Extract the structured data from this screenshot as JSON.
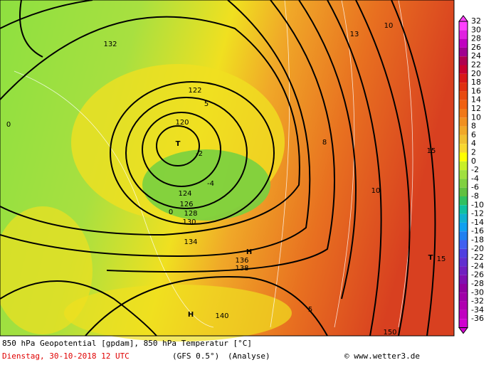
{
  "legend": {
    "levels": [
      {
        "value": 32,
        "color": "#ff40ff"
      },
      {
        "value": 30,
        "color": "#e020e0"
      },
      {
        "value": 28,
        "color": "#c000c0"
      },
      {
        "value": 26,
        "color": "#a00090"
      },
      {
        "value": 24,
        "color": "#b00050"
      },
      {
        "value": 22,
        "color": "#c80030"
      },
      {
        "value": 20,
        "color": "#d81818"
      },
      {
        "value": 18,
        "color": "#e03010"
      },
      {
        "value": 16,
        "color": "#e84a10"
      },
      {
        "value": 14,
        "color": "#f06010"
      },
      {
        "value": 12,
        "color": "#f07818"
      },
      {
        "value": 10,
        "color": "#f09020"
      },
      {
        "value": 8,
        "color": "#f0a828"
      },
      {
        "value": 6,
        "color": "#f0c030"
      },
      {
        "value": 4,
        "color": "#f8d830"
      },
      {
        "value": 2,
        "color": "#ffff00"
      },
      {
        "value": 0,
        "color": "#c8f028"
      },
      {
        "value": -2,
        "color": "#a0e040"
      },
      {
        "value": -4,
        "color": "#80d040"
      },
      {
        "value": -6,
        "color": "#60c040"
      },
      {
        "value": -8,
        "color": "#30c060"
      },
      {
        "value": -10,
        "color": "#10c0a0"
      },
      {
        "value": -12,
        "color": "#10b0d0"
      },
      {
        "value": -14,
        "color": "#10a0f0"
      },
      {
        "value": -16,
        "color": "#2080f0"
      },
      {
        "value": -18,
        "color": "#4060f0"
      },
      {
        "value": -20,
        "color": "#5040e0"
      },
      {
        "value": -22,
        "color": "#6030d0"
      },
      {
        "value": -24,
        "color": "#7020c0"
      },
      {
        "value": -26,
        "color": "#8010b0"
      },
      {
        "value": -28,
        "color": "#9000a0"
      },
      {
        "value": -30,
        "color": "#a000a8"
      },
      {
        "value": -32,
        "color": "#b000b0"
      },
      {
        "value": -34,
        "color": "#c000c0"
      },
      {
        "value": -36,
        "color": "#d000d0"
      }
    ]
  },
  "map": {
    "labels": [
      "T",
      "H",
      "H",
      "T",
      120,
      122,
      124,
      126,
      128,
      130,
      132,
      134,
      136,
      138,
      140,
      150,
      10,
      10,
      15,
      15,
      5,
      5,
      0,
      0,
      -2,
      -4,
      8,
      13
    ]
  },
  "footer": {
    "line1": "850 hPa Geopotential [gpdam], 850 hPa Temperatur [°C]",
    "date": "Dienstag, 30-10-2018  12 UTC",
    "model": "(GFS 0.5°)",
    "run": "(Analyse)",
    "credit": "© www.wetter3.de"
  }
}
